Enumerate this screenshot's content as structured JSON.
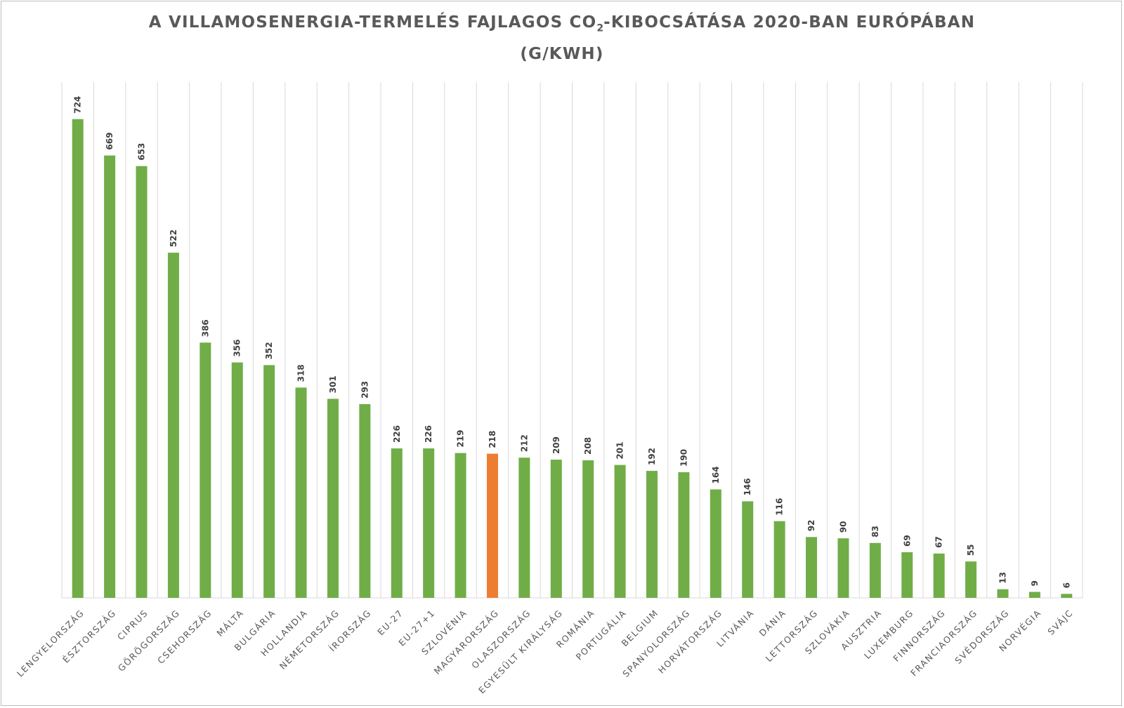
{
  "chart_data": {
    "type": "bar",
    "title": {
      "line1_part1": "A VILLAMOSENERGIA-TERMELÉS FAJLAGOS CO",
      "line1_sub": "2",
      "line1_part2": "-KIBOCSÁTÁSA 2020-BAN EURÓPÁBAN",
      "line2": "(G/KWH)"
    },
    "categories": [
      "LENGYELORSZÁG",
      "ÉSZTORSZÁG",
      "CIPRUS",
      "GÖRÖGORSZÁG",
      "CSEHORSZÁG",
      "MÁLTA",
      "BULGÁRIA",
      "HOLLANDIA",
      "NÉMETORSZÁG",
      "ÍRORSZÁG",
      "EU-27",
      "EU-27+1",
      "SZLOVÉNIA",
      "MAGYARORSZÁG",
      "OLASZORSZÁG",
      "EGYESÜLT KIRÁLYSÁG",
      "ROMÁNIA",
      "PORTUGÁLIA",
      "BELGIUM",
      "SPANYOLORSZÁG",
      "HORVÁTORSZÁG",
      "LITVÁNIA",
      "DÁNIA",
      "LETTORSZÁG",
      "SZLOVÁKIA",
      "AUSZTRIA",
      "LUXEMBURG",
      "FINNORSZÁG",
      "FRANCIAORSZÁG",
      "SVÉDORSZÁG",
      "NORVÉGIA",
      "SVÁJC"
    ],
    "values": [
      724,
      669,
      653,
      522,
      386,
      356,
      352,
      318,
      301,
      293,
      226,
      226,
      219,
      218,
      212,
      209,
      208,
      201,
      192,
      190,
      164,
      146,
      116,
      92,
      90,
      83,
      69,
      67,
      55,
      13,
      9,
      6
    ],
    "ylim": [
      0,
      780
    ],
    "grid": "vertical",
    "legend": "none",
    "colors": {
      "default": "#70ad47",
      "highlight": "#ed7d31"
    },
    "highlight_category": "MAGYARORSZÁG"
  }
}
